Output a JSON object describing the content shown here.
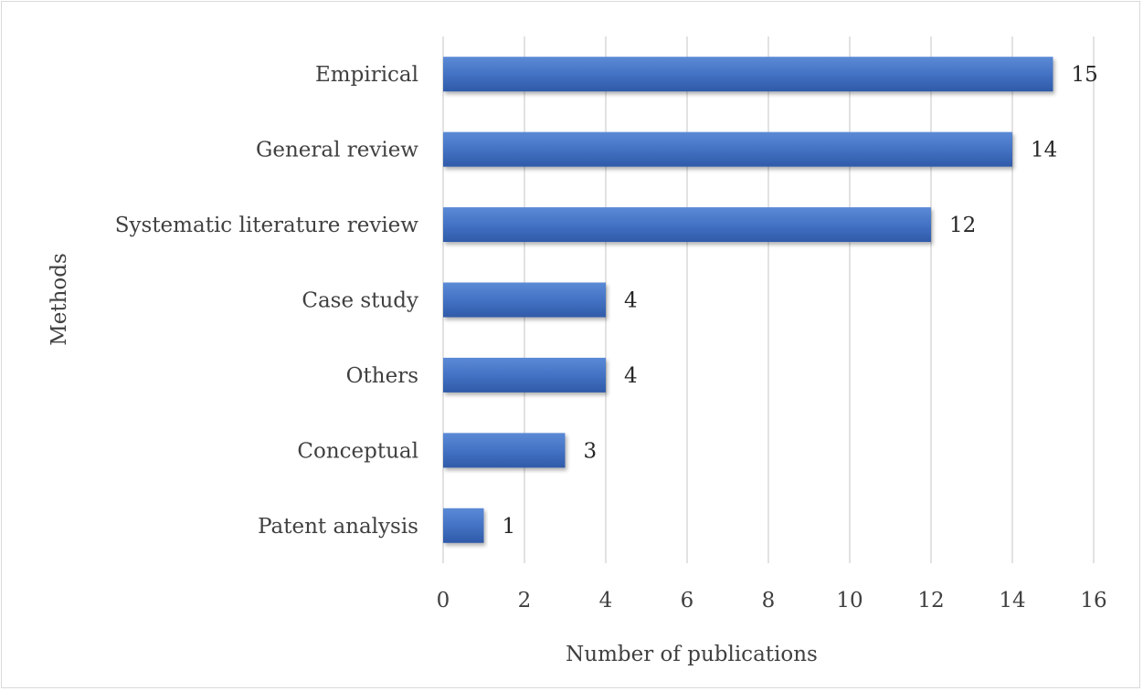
{
  "chart_data": {
    "type": "bar",
    "orientation": "horizontal",
    "categories": [
      "Empirical",
      "General review",
      "Systematic literature review",
      "Case study",
      "Others",
      "Conceptual",
      "Patent analysis"
    ],
    "values": [
      15,
      14,
      12,
      4,
      4,
      3,
      1
    ],
    "data_labels": [
      "15",
      "14",
      "12",
      "4",
      "4",
      "3",
      "1"
    ],
    "title": "",
    "xlabel": "Number of publications",
    "ylabel": "Methods",
    "xlim": [
      0,
      16
    ],
    "x_ticks": [
      0,
      2,
      4,
      6,
      8,
      10,
      12,
      14,
      16
    ],
    "grid": "vertical",
    "legend": "none",
    "colors": {
      "bar": "#4472c4",
      "bar_light": "#5b8ad6",
      "bar_dark": "#2f5aa8",
      "grid": "#d9d9d9",
      "text": "#404040"
    }
  }
}
